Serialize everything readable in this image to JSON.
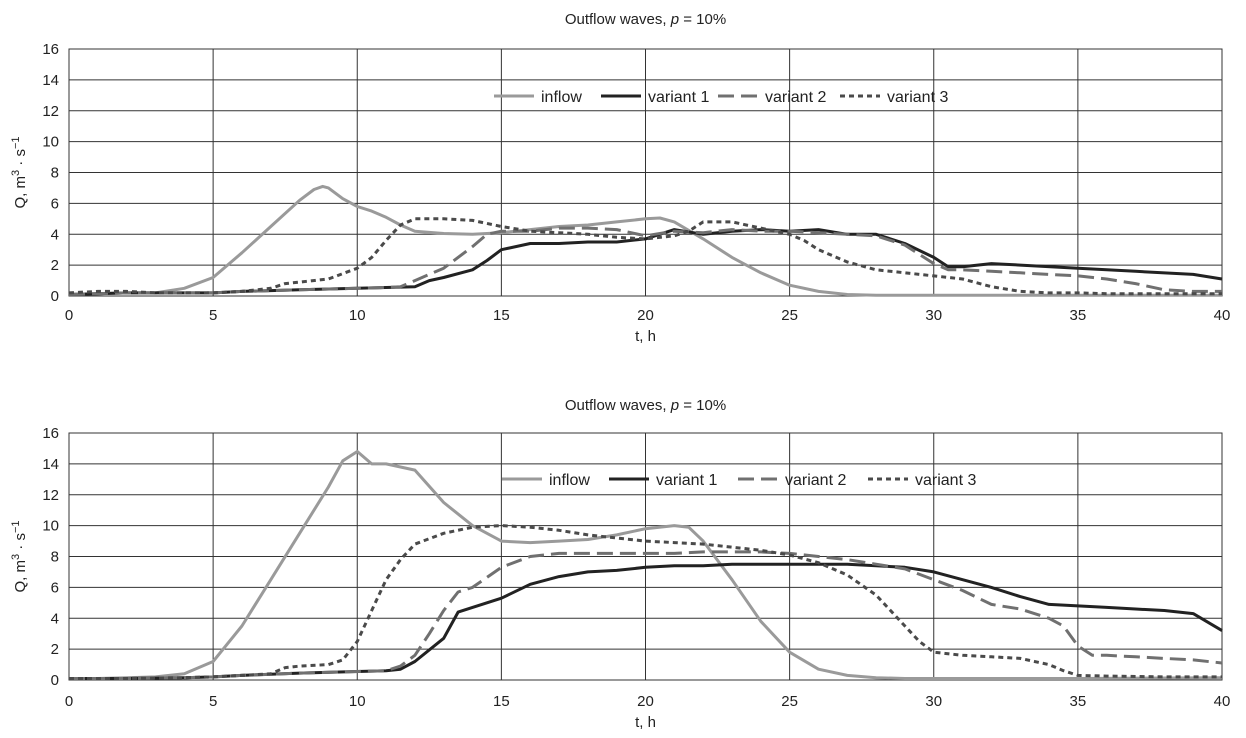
{
  "chart_data": [
    {
      "type": "line",
      "title": "Outflow waves, p = 10%",
      "title_prefix": "Outflow waves, ",
      "title_italic": "p",
      "title_suffix": " = 10%",
      "xlabel": "t, h",
      "ylabel": "Q, m3 · s−1",
      "xlim": [
        0,
        40
      ],
      "ylim": [
        0,
        16
      ],
      "xticks": [
        0,
        5,
        10,
        15,
        20,
        25,
        30,
        35,
        40
      ],
      "yticks": [
        0,
        2,
        4,
        6,
        8,
        10,
        12,
        14,
        16
      ],
      "grid": true,
      "legend_position": "top-center",
      "series": [
        {
          "name": "inflow",
          "color": "#9a9a9a",
          "dash": "solid",
          "x": [
            0,
            1,
            2,
            3,
            4,
            5,
            6,
            7,
            8,
            8.5,
            8.8,
            9,
            9.5,
            10,
            10.5,
            11,
            11.5,
            12,
            13,
            14,
            15,
            16,
            17,
            18,
            19,
            20,
            20.5,
            21,
            22,
            23,
            24,
            25,
            26,
            27,
            28,
            30,
            32,
            35,
            40
          ],
          "y": [
            0.1,
            0.15,
            0.2,
            0.2,
            0.5,
            1.2,
            2.8,
            4.5,
            6.2,
            6.9,
            7.1,
            7.0,
            6.3,
            5.8,
            5.5,
            5.1,
            4.6,
            4.2,
            4.05,
            4.0,
            4.1,
            4.3,
            4.5,
            4.6,
            4.8,
            5.0,
            5.05,
            4.8,
            3.7,
            2.5,
            1.5,
            0.7,
            0.3,
            0.1,
            0.05,
            0.05,
            0.05,
            0.05,
            0.05
          ]
        },
        {
          "name": "variant 1",
          "color": "#222222",
          "dash": "solid",
          "x": [
            0,
            2,
            4,
            5,
            6,
            8,
            10,
            11,
            12,
            12.5,
            13,
            14,
            14.5,
            15,
            16,
            17,
            18,
            19,
            20,
            21,
            22,
            23,
            24,
            25,
            26,
            27,
            28,
            29,
            30,
            30.5,
            31,
            32,
            33,
            35,
            37,
            39,
            40
          ],
          "y": [
            0.1,
            0.2,
            0.2,
            0.2,
            0.3,
            0.4,
            0.5,
            0.55,
            0.6,
            1.0,
            1.2,
            1.7,
            2.3,
            3.0,
            3.4,
            3.4,
            3.5,
            3.5,
            3.7,
            4.3,
            4.0,
            4.2,
            4.3,
            4.2,
            4.3,
            4.0,
            4.0,
            3.4,
            2.5,
            1.9,
            1.9,
            2.1,
            2.0,
            1.8,
            1.6,
            1.4,
            1.1
          ]
        },
        {
          "name": "variant 2",
          "color": "#707070",
          "dash": "long",
          "x": [
            0,
            2,
            4,
            5,
            6,
            8,
            10,
            11,
            11.5,
            12,
            13,
            14,
            14.5,
            15,
            16,
            17,
            18,
            19,
            20,
            21,
            22,
            23,
            24,
            25,
            26,
            27,
            28,
            29,
            30,
            30.5,
            31,
            32,
            33,
            34,
            35,
            36,
            37,
            38,
            39,
            40
          ],
          "y": [
            0.1,
            0.2,
            0.2,
            0.2,
            0.3,
            0.4,
            0.5,
            0.55,
            0.6,
            1.0,
            1.8,
            3.2,
            4.0,
            4.2,
            4.2,
            4.4,
            4.4,
            4.3,
            3.9,
            4.2,
            4.1,
            4.3,
            4.2,
            4.2,
            4.1,
            4.0,
            3.9,
            3.3,
            2.1,
            1.7,
            1.7,
            1.6,
            1.5,
            1.4,
            1.3,
            1.1,
            0.8,
            0.4,
            0.3,
            0.3
          ]
        },
        {
          "name": "variant 3",
          "color": "#4a4a4a",
          "dash": "short",
          "x": [
            0,
            1,
            2,
            3,
            4,
            5,
            6,
            7,
            7.5,
            8,
            9,
            10,
            10.5,
            11,
            11.5,
            12,
            13,
            14,
            15,
            16,
            17,
            18,
            19,
            20,
            21,
            21.5,
            22,
            23,
            24,
            25,
            25.5,
            26,
            27,
            28,
            29,
            30,
            31,
            32,
            33,
            34,
            35,
            36,
            37,
            38,
            40
          ],
          "y": [
            0.2,
            0.3,
            0.3,
            0.2,
            0.2,
            0.2,
            0.3,
            0.5,
            0.8,
            0.9,
            1.1,
            1.8,
            2.5,
            3.6,
            4.6,
            5.0,
            5.0,
            4.9,
            4.5,
            4.2,
            4.1,
            4.0,
            3.8,
            3.7,
            3.9,
            4.2,
            4.8,
            4.8,
            4.4,
            4.0,
            3.6,
            3.0,
            2.2,
            1.7,
            1.5,
            1.3,
            1.1,
            0.6,
            0.3,
            0.2,
            0.2,
            0.15,
            0.15,
            0.15,
            0.15
          ]
        }
      ]
    },
    {
      "type": "line",
      "title": "Outflow waves, p = 10%",
      "title_prefix": "Outflow waves, ",
      "title_italic": "p",
      "title_suffix": " = 10%",
      "xlabel": "t, h",
      "ylabel": "Q, m3 · s−1",
      "xlim": [
        0,
        40
      ],
      "ylim": [
        0,
        16
      ],
      "xticks": [
        0,
        5,
        10,
        15,
        20,
        25,
        30,
        35,
        40
      ],
      "yticks": [
        0,
        2,
        4,
        6,
        8,
        10,
        12,
        14,
        16
      ],
      "grid": true,
      "legend_position": "top-center",
      "series": [
        {
          "name": "inflow",
          "color": "#9a9a9a",
          "dash": "solid",
          "x": [
            0,
            1,
            2,
            3,
            4,
            5,
            6,
            7,
            8,
            9,
            9.5,
            10,
            10.5,
            11,
            11.5,
            12,
            13,
            14,
            15,
            16,
            17,
            18,
            19,
            20,
            21,
            21.5,
            22,
            23,
            24,
            25,
            26,
            27,
            28,
            29,
            30,
            35,
            40
          ],
          "y": [
            0.1,
            0.1,
            0.15,
            0.2,
            0.4,
            1.2,
            3.5,
            6.5,
            9.5,
            12.5,
            14.2,
            14.8,
            14.0,
            14.0,
            13.8,
            13.6,
            11.5,
            10.0,
            9.0,
            8.9,
            9.0,
            9.1,
            9.4,
            9.8,
            10.0,
            9.9,
            9.0,
            6.5,
            3.8,
            1.8,
            0.7,
            0.3,
            0.15,
            0.1,
            0.1,
            0.1,
            0.15
          ]
        },
        {
          "name": "variant 1",
          "color": "#222222",
          "dash": "solid",
          "x": [
            0,
            2,
            4,
            5,
            6,
            8,
            10,
            11,
            11.5,
            12,
            13,
            13.5,
            14,
            15,
            16,
            17,
            18,
            19,
            20,
            21,
            22,
            23,
            24,
            25,
            26,
            27,
            28,
            29,
            30,
            31,
            32,
            33,
            34,
            35,
            36,
            37,
            38,
            39,
            40
          ],
          "y": [
            0.1,
            0.1,
            0.15,
            0.2,
            0.3,
            0.45,
            0.55,
            0.6,
            0.7,
            1.2,
            2.7,
            4.4,
            4.7,
            5.3,
            6.2,
            6.7,
            7.0,
            7.1,
            7.3,
            7.4,
            7.4,
            7.5,
            7.5,
            7.5,
            7.5,
            7.5,
            7.4,
            7.3,
            7.0,
            6.5,
            6.0,
            5.4,
            4.9,
            4.8,
            4.7,
            4.6,
            4.5,
            4.3,
            3.2
          ]
        },
        {
          "name": "variant 2",
          "color": "#707070",
          "dash": "long",
          "x": [
            0,
            2,
            4,
            5,
            6,
            8,
            10,
            11,
            11.5,
            12,
            12.5,
            13,
            13.5,
            14,
            15,
            16,
            17,
            18,
            19,
            20,
            21,
            22,
            23,
            24,
            25,
            26,
            27,
            28,
            29,
            30,
            31,
            32,
            33,
            34,
            34.5,
            35,
            35.5,
            36,
            37,
            38,
            39,
            40
          ],
          "y": [
            0.1,
            0.1,
            0.15,
            0.2,
            0.3,
            0.45,
            0.55,
            0.6,
            0.9,
            1.6,
            3.0,
            4.5,
            5.7,
            6.0,
            7.3,
            8.0,
            8.2,
            8.2,
            8.2,
            8.2,
            8.2,
            8.3,
            8.3,
            8.3,
            8.2,
            8.0,
            7.8,
            7.5,
            7.2,
            6.5,
            5.8,
            4.9,
            4.6,
            4.0,
            3.5,
            2.2,
            1.6,
            1.6,
            1.5,
            1.4,
            1.3,
            1.1
          ]
        },
        {
          "name": "variant 3",
          "color": "#4a4a4a",
          "dash": "short",
          "x": [
            0,
            2,
            4,
            5,
            6,
            7,
            7.5,
            8,
            9,
            9.5,
            10,
            10.5,
            11,
            11.5,
            12,
            13,
            14,
            15,
            16,
            17,
            18,
            19,
            20,
            21,
            22,
            23,
            24,
            25,
            26,
            27,
            28,
            28.5,
            29,
            29.5,
            30,
            31,
            32,
            33,
            34,
            34.5,
            35,
            36,
            38,
            40
          ],
          "y": [
            0.1,
            0.1,
            0.15,
            0.2,
            0.3,
            0.4,
            0.8,
            0.9,
            1.0,
            1.3,
            2.5,
            4.5,
            6.5,
            7.8,
            8.8,
            9.5,
            9.9,
            10.0,
            9.9,
            9.7,
            9.4,
            9.2,
            9.0,
            8.9,
            8.8,
            8.6,
            8.4,
            8.1,
            7.6,
            6.8,
            5.5,
            4.5,
            3.5,
            2.5,
            1.8,
            1.6,
            1.5,
            1.4,
            1.0,
            0.6,
            0.3,
            0.25,
            0.2,
            0.2
          ]
        }
      ]
    }
  ]
}
